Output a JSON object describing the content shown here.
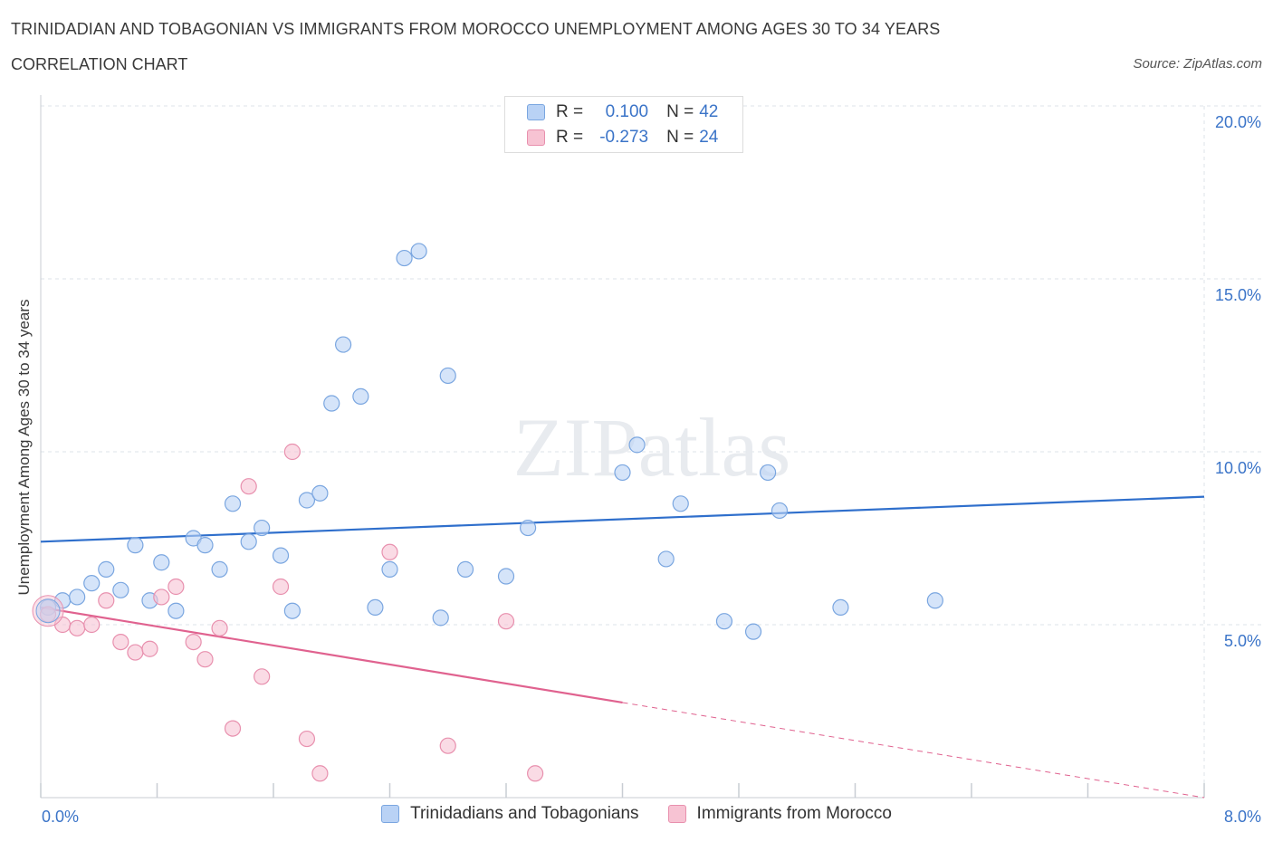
{
  "header": {
    "title": "TRINIDADIAN AND TOBAGONIAN VS IMMIGRANTS FROM MOROCCO UNEMPLOYMENT AMONG AGES 30 TO 34 YEARS",
    "subtitle": "CORRELATION CHART",
    "source": "Source: ZipAtlas.com"
  },
  "legend": {
    "series1": {
      "r_label": "R =",
      "r_value": "0.100",
      "n_label": "N =",
      "n_value": "42"
    },
    "series2": {
      "r_label": "R =",
      "r_value": "-0.273",
      "n_label": "N =",
      "n_value": "24"
    }
  },
  "colors": {
    "blue_fill": "#b9d2f5",
    "blue_stroke": "#7aa6e0",
    "blue_line": "#2f6fcc",
    "pink_fill": "#f7c3d3",
    "pink_stroke": "#e890ae",
    "pink_line": "#e0628f",
    "axis_text": "#3b74c8",
    "grid": "#dde3ea"
  },
  "chart_data": {
    "type": "scatter",
    "title": "TRINIDADIAN AND TOBAGONIAN VS IMMIGRANTS FROM MOROCCO UNEMPLOYMENT AMONG AGES 30 TO 34 YEARS",
    "xlabel": "",
    "ylabel": "Unemployment Among Ages 30 to 34 years",
    "xlim": [
      0,
      8
    ],
    "ylim": [
      0,
      20
    ],
    "x_tick_labels": [
      "0.0%",
      "8.0%"
    ],
    "y_ticks": [
      5,
      10,
      15,
      20
    ],
    "y_tick_labels": [
      "5.0%",
      "10.0%",
      "15.0%",
      "20.0%"
    ],
    "watermark": "ZIPatlas",
    "series": [
      {
        "name": "Trinidadians and Tobagonians",
        "color": "blue",
        "trend": {
          "x": [
            0,
            8
          ],
          "y": [
            7.4,
            8.7
          ],
          "dashed_from": null
        },
        "points": [
          [
            0.05,
            5.5
          ],
          [
            0.15,
            5.7
          ],
          [
            0.25,
            5.8
          ],
          [
            0.35,
            6.2
          ],
          [
            0.45,
            6.6
          ],
          [
            0.55,
            6.0
          ],
          [
            0.65,
            7.3
          ],
          [
            0.75,
            5.7
          ],
          [
            0.83,
            6.8
          ],
          [
            0.93,
            5.4
          ],
          [
            1.05,
            7.5
          ],
          [
            1.13,
            7.3
          ],
          [
            1.23,
            6.6
          ],
          [
            1.32,
            8.5
          ],
          [
            1.43,
            7.4
          ],
          [
            1.52,
            7.8
          ],
          [
            1.65,
            7.0
          ],
          [
            1.73,
            5.4
          ],
          [
            1.83,
            8.6
          ],
          [
            1.92,
            8.8
          ],
          [
            2.0,
            11.4
          ],
          [
            2.08,
            13.1
          ],
          [
            2.2,
            11.6
          ],
          [
            2.3,
            5.5
          ],
          [
            2.4,
            6.6
          ],
          [
            2.5,
            15.6
          ],
          [
            2.6,
            15.8
          ],
          [
            2.75,
            5.2
          ],
          [
            2.8,
            12.2
          ],
          [
            2.92,
            6.6
          ],
          [
            3.2,
            6.4
          ],
          [
            3.35,
            7.8
          ],
          [
            4.0,
            9.4
          ],
          [
            4.1,
            10.2
          ],
          [
            4.3,
            6.9
          ],
          [
            4.4,
            8.5
          ],
          [
            4.7,
            5.1
          ],
          [
            4.9,
            4.8
          ],
          [
            5.0,
            9.4
          ],
          [
            5.08,
            8.3
          ],
          [
            5.5,
            5.5
          ],
          [
            6.15,
            5.7
          ]
        ]
      },
      {
        "name": "Immigrants from Morocco",
        "color": "pink",
        "trend": {
          "x": [
            0,
            8
          ],
          "y": [
            5.5,
            0.0
          ],
          "dashed_from": 4.0
        },
        "points": [
          [
            0.05,
            5.3
          ],
          [
            0.15,
            5.0
          ],
          [
            0.25,
            4.9
          ],
          [
            0.35,
            5.0
          ],
          [
            0.45,
            5.7
          ],
          [
            0.55,
            4.5
          ],
          [
            0.65,
            4.2
          ],
          [
            0.75,
            4.3
          ],
          [
            0.83,
            5.8
          ],
          [
            0.93,
            6.1
          ],
          [
            1.05,
            4.5
          ],
          [
            1.13,
            4.0
          ],
          [
            1.23,
            4.9
          ],
          [
            1.32,
            2.0
          ],
          [
            1.43,
            9.0
          ],
          [
            1.52,
            3.5
          ],
          [
            1.65,
            6.1
          ],
          [
            1.73,
            10.0
          ],
          [
            1.83,
            1.7
          ],
          [
            1.92,
            0.7
          ],
          [
            2.4,
            7.1
          ],
          [
            2.8,
            1.5
          ],
          [
            3.2,
            5.1
          ],
          [
            3.4,
            0.7
          ]
        ]
      }
    ]
  },
  "bottom_legend": {
    "item1": "Trinidadians and Tobagonians",
    "item2": "Immigrants from Morocco"
  }
}
